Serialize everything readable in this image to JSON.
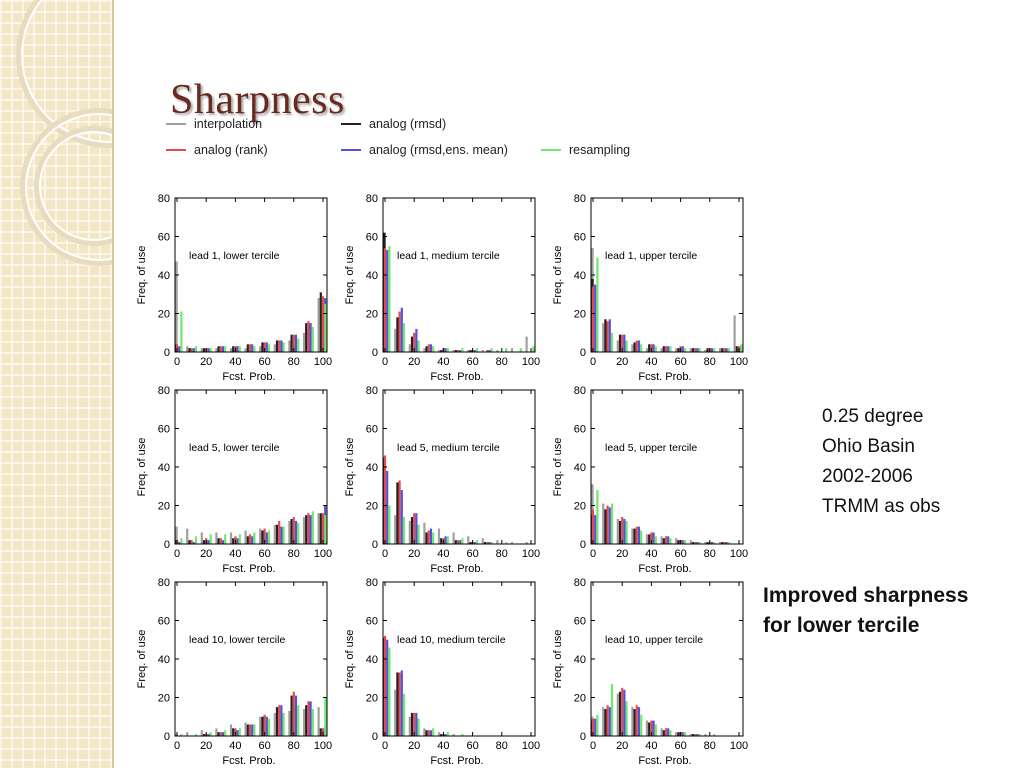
{
  "slide": {
    "title": "Sharpness",
    "notes": [
      "0.25 degree",
      "Ohio Basin",
      "2002-2006",
      "TRMM as obs"
    ],
    "highlight": [
      "Improved sharpness",
      "for lower tercile"
    ]
  },
  "legend": [
    {
      "name": "interpolation",
      "color": "#a0a0a0"
    },
    {
      "name": "analog (rmsd)",
      "color": "#222222"
    },
    {
      "name": "analog (rank)",
      "color": "#e84a4a"
    },
    {
      "name": "analog (rmsd,ens. mean)",
      "color": "#5252e0"
    },
    {
      "name": "resampling",
      "color": "#6ee86e"
    }
  ],
  "chart_data": [
    {
      "type": "bar",
      "title": "lead 1, lower tercile",
      "xlabel": "Fcst. Prob.",
      "ylabel": "Freq. of use",
      "ylim": [
        0,
        80
      ],
      "xlim": [
        0,
        100
      ],
      "xticks": [
        0,
        20,
        40,
        60,
        80,
        100
      ],
      "yticks": [
        0,
        20,
        40,
        60,
        80
      ],
      "categories": [
        0,
        10,
        20,
        30,
        40,
        50,
        60,
        70,
        80,
        90,
        100
      ],
      "series": [
        {
          "name": "interpolation",
          "values": [
            47,
            3,
            2,
            2,
            2,
            2,
            3,
            4,
            6,
            10,
            28
          ]
        },
        {
          "name": "analog (rmsd)",
          "values": [
            4,
            2,
            2,
            3,
            3,
            4,
            5,
            6,
            9,
            15,
            31
          ]
        },
        {
          "name": "analog (rank)",
          "values": [
            4,
            2,
            2,
            3,
            3,
            4,
            5,
            6,
            9,
            16,
            29
          ]
        },
        {
          "name": "analog (rmsd,ens. mean)",
          "values": [
            3,
            2,
            2,
            3,
            3,
            4,
            5,
            6,
            9,
            15,
            28
          ]
        },
        {
          "name": "resampling",
          "values": [
            21,
            3,
            2,
            3,
            3,
            3,
            4,
            5,
            7,
            13,
            25
          ]
        }
      ]
    },
    {
      "type": "bar",
      "title": "lead 1, medium tercile",
      "xlabel": "Fcst. Prob.",
      "ylabel": "Freq. of use",
      "ylim": [
        0,
        80
      ],
      "xlim": [
        0,
        100
      ],
      "xticks": [
        0,
        20,
        40,
        60,
        80,
        100
      ],
      "yticks": [
        0,
        20,
        40,
        60,
        80
      ],
      "categories": [
        0,
        10,
        20,
        30,
        40,
        50,
        60,
        70,
        80,
        90,
        100
      ],
      "series": [
        {
          "name": "interpolation",
          "values": [
            44,
            12,
            4,
            2,
            1,
            1,
            1,
            1,
            1,
            2,
            8
          ]
        },
        {
          "name": "analog (rmsd)",
          "values": [
            62,
            18,
            8,
            3,
            1,
            1,
            1,
            0,
            0,
            0,
            0
          ]
        },
        {
          "name": "analog (rank)",
          "values": [
            54,
            21,
            10,
            4,
            2,
            1,
            1,
            1,
            0,
            0,
            0
          ]
        },
        {
          "name": "analog (rmsd,ens. mean)",
          "values": [
            53,
            23,
            12,
            4,
            2,
            1,
            1,
            1,
            0,
            0,
            0
          ]
        },
        {
          "name": "resampling",
          "values": [
            55,
            15,
            6,
            3,
            2,
            2,
            2,
            2,
            2,
            2,
            3
          ]
        }
      ]
    },
    {
      "type": "bar",
      "title": "lead 1, upper tercile",
      "xlabel": "Fcst. Prob.",
      "ylabel": "Freq. of use",
      "ylim": [
        0,
        80
      ],
      "xlim": [
        0,
        100
      ],
      "xticks": [
        0,
        20,
        40,
        60,
        80,
        100
      ],
      "yticks": [
        0,
        20,
        40,
        60,
        80
      ],
      "categories": [
        0,
        10,
        20,
        30,
        40,
        50,
        60,
        70,
        80,
        90,
        100
      ],
      "series": [
        {
          "name": "interpolation",
          "values": [
            54,
            15,
            6,
            4,
            2,
            2,
            2,
            2,
            1,
            2,
            19
          ]
        },
        {
          "name": "analog (rmsd)",
          "values": [
            38,
            17,
            9,
            5,
            4,
            3,
            2,
            2,
            2,
            2,
            3
          ]
        },
        {
          "name": "analog (rank)",
          "values": [
            34,
            16,
            9,
            6,
            4,
            3,
            3,
            2,
            2,
            2,
            3
          ]
        },
        {
          "name": "analog (rmsd,ens. mean)",
          "values": [
            35,
            17,
            9,
            6,
            4,
            3,
            3,
            2,
            2,
            2,
            3
          ]
        },
        {
          "name": "resampling",
          "values": [
            49,
            10,
            6,
            4,
            3,
            3,
            2,
            2,
            2,
            2,
            4
          ]
        }
      ]
    },
    {
      "type": "bar",
      "title": "lead 5, lower tercile",
      "xlabel": "Fcst. Prob.",
      "ylabel": "Freq. of use",
      "ylim": [
        0,
        80
      ],
      "xlim": [
        0,
        100
      ],
      "xticks": [
        0,
        20,
        40,
        60,
        80,
        100
      ],
      "yticks": [
        0,
        20,
        40,
        60,
        80
      ],
      "categories": [
        0,
        10,
        20,
        30,
        40,
        50,
        60,
        70,
        80,
        90,
        100
      ],
      "series": [
        {
          "name": "interpolation",
          "values": [
            9,
            8,
            6,
            6,
            6,
            7,
            8,
            10,
            12,
            14,
            16
          ]
        },
        {
          "name": "analog (rmsd)",
          "values": [
            2,
            2,
            2,
            3,
            3,
            4,
            7,
            10,
            13,
            15,
            16
          ]
        },
        {
          "name": "analog (rank)",
          "values": [
            2,
            2,
            3,
            3,
            4,
            5,
            8,
            12,
            14,
            16,
            16
          ]
        },
        {
          "name": "analog (rmsd,ens. mean)",
          "values": [
            1,
            1,
            2,
            2,
            3,
            4,
            6,
            9,
            12,
            15,
            20
          ]
        },
        {
          "name": "resampling",
          "values": [
            3,
            4,
            5,
            5,
            5,
            6,
            7,
            9,
            11,
            17,
            15
          ]
        }
      ]
    },
    {
      "type": "bar",
      "title": "lead 5, medium tercile",
      "xlabel": "Fcst. Prob.",
      "ylabel": "Freq. of use",
      "ylim": [
        0,
        80
      ],
      "xlim": [
        0,
        100
      ],
      "xticks": [
        0,
        20,
        40,
        60,
        80,
        100
      ],
      "yticks": [
        0,
        20,
        40,
        60,
        80
      ],
      "categories": [
        0,
        10,
        20,
        30,
        40,
        50,
        60,
        70,
        80,
        90,
        100
      ],
      "series": [
        {
          "name": "interpolation",
          "values": [
            17,
            15,
            12,
            11,
            8,
            6,
            4,
            3,
            2,
            1,
            1
          ]
        },
        {
          "name": "analog (rmsd)",
          "values": [
            45,
            32,
            14,
            6,
            3,
            2,
            1,
            1,
            0,
            0,
            0
          ]
        },
        {
          "name": "analog (rank)",
          "values": [
            46,
            33,
            16,
            7,
            3,
            2,
            1,
            1,
            0,
            0,
            0
          ]
        },
        {
          "name": "analog (rmsd,ens. mean)",
          "values": [
            38,
            28,
            16,
            8,
            4,
            2,
            1,
            1,
            0,
            0,
            0
          ]
        },
        {
          "name": "resampling",
          "values": [
            20,
            14,
            10,
            6,
            4,
            3,
            2,
            1,
            1,
            0,
            0
          ]
        }
      ]
    },
    {
      "type": "bar",
      "title": "lead 5, upper tercile",
      "xlabel": "Fcst. Prob.",
      "ylabel": "Freq. of use",
      "ylim": [
        0,
        80
      ],
      "xlim": [
        0,
        100
      ],
      "xticks": [
        0,
        20,
        40,
        60,
        80,
        100
      ],
      "yticks": [
        0,
        20,
        40,
        60,
        80
      ],
      "categories": [
        0,
        10,
        20,
        30,
        40,
        50,
        60,
        70,
        80,
        90,
        100
      ],
      "series": [
        {
          "name": "interpolation",
          "values": [
            31,
            21,
            13,
            8,
            5,
            4,
            3,
            2,
            1,
            1,
            0
          ]
        },
        {
          "name": "analog (rmsd)",
          "values": [
            15,
            18,
            12,
            8,
            5,
            3,
            2,
            1,
            1,
            1,
            0
          ]
        },
        {
          "name": "analog (rank)",
          "values": [
            18,
            20,
            14,
            9,
            6,
            4,
            2,
            1,
            1,
            1,
            0
          ]
        },
        {
          "name": "analog (rmsd,ens. mean)",
          "values": [
            15,
            19,
            13,
            9,
            6,
            4,
            2,
            1,
            1,
            1,
            0
          ]
        },
        {
          "name": "resampling",
          "values": [
            28,
            21,
            12,
            7,
            4,
            3,
            2,
            1,
            1,
            1,
            0
          ]
        }
      ]
    },
    {
      "type": "bar",
      "title": "lead 10, lower tercile",
      "xlabel": "Fcst. Prob.",
      "ylabel": "Freq. of use",
      "ylim": [
        0,
        80
      ],
      "xlim": [
        0,
        100
      ],
      "xticks": [
        0,
        20,
        40,
        60,
        80,
        100
      ],
      "yticks": [
        0,
        20,
        40,
        60,
        80
      ],
      "categories": [
        0,
        10,
        20,
        30,
        40,
        50,
        60,
        70,
        80,
        90,
        100
      ],
      "series": [
        {
          "name": "interpolation",
          "values": [
            1,
            2,
            3,
            4,
            6,
            7,
            10,
            12,
            13,
            14,
            15
          ]
        },
        {
          "name": "analog (rmsd)",
          "values": [
            0,
            0,
            1,
            2,
            4,
            6,
            10,
            15,
            21,
            16,
            4
          ]
        },
        {
          "name": "analog (rank)",
          "values": [
            0,
            0,
            1,
            2,
            4,
            6,
            11,
            16,
            23,
            18,
            4
          ]
        },
        {
          "name": "analog (rmsd,ens. mean)",
          "values": [
            0,
            0,
            1,
            2,
            3,
            6,
            10,
            16,
            21,
            18,
            5
          ]
        },
        {
          "name": "resampling",
          "values": [
            1,
            1,
            2,
            3,
            4,
            6,
            9,
            12,
            16,
            14,
            20
          ]
        }
      ]
    },
    {
      "type": "bar",
      "title": "lead 10, medium tercile",
      "xlabel": "Fcst. Prob.",
      "ylabel": "Freq. of use",
      "ylim": [
        0,
        80
      ],
      "xlim": [
        0,
        100
      ],
      "xticks": [
        0,
        20,
        40,
        60,
        80,
        100
      ],
      "yticks": [
        0,
        20,
        40,
        60,
        80
      ],
      "categories": [
        0,
        10,
        20,
        30,
        40,
        50,
        60,
        70,
        80,
        90,
        100
      ],
      "series": [
        {
          "name": "interpolation",
          "values": [
            44,
            24,
            10,
            4,
            2,
            1,
            0,
            0,
            0,
            0,
            0
          ]
        },
        {
          "name": "analog (rmsd)",
          "values": [
            51,
            33,
            12,
            3,
            1,
            0,
            0,
            0,
            0,
            0,
            0
          ]
        },
        {
          "name": "analog (rank)",
          "values": [
            52,
            33,
            12,
            3,
            1,
            0,
            0,
            0,
            0,
            0,
            0
          ]
        },
        {
          "name": "analog (rmsd,ens. mean)",
          "values": [
            50,
            34,
            12,
            3,
            1,
            0,
            0,
            0,
            0,
            0,
            0
          ]
        },
        {
          "name": "resampling",
          "values": [
            46,
            22,
            9,
            4,
            2,
            1,
            0,
            0,
            0,
            0,
            0
          ]
        }
      ]
    },
    {
      "type": "bar",
      "title": "lead 10, upper tercile",
      "xlabel": "Fcst. Prob.",
      "ylabel": "Freq. of use",
      "ylim": [
        0,
        80
      ],
      "xlim": [
        0,
        100
      ],
      "xticks": [
        0,
        20,
        40,
        60,
        80,
        100
      ],
      "yticks": [
        0,
        20,
        40,
        60,
        80
      ],
      "categories": [
        0,
        10,
        20,
        30,
        40,
        50,
        60,
        70,
        80,
        90,
        100
      ],
      "series": [
        {
          "name": "interpolation",
          "values": [
            10,
            15,
            22,
            15,
            8,
            4,
            2,
            1,
            1,
            0,
            0
          ]
        },
        {
          "name": "analog (rmsd)",
          "values": [
            8,
            14,
            23,
            14,
            7,
            3,
            2,
            1,
            0,
            0,
            0
          ]
        },
        {
          "name": "analog (rank)",
          "values": [
            9,
            16,
            25,
            16,
            8,
            4,
            2,
            1,
            0,
            0,
            0
          ]
        },
        {
          "name": "analog (rmsd,ens. mean)",
          "values": [
            9,
            15,
            24,
            15,
            8,
            4,
            2,
            1,
            0,
            0,
            0
          ]
        },
        {
          "name": "resampling",
          "values": [
            11,
            27,
            18,
            11,
            6,
            3,
            2,
            1,
            1,
            0,
            0
          ]
        }
      ]
    }
  ]
}
